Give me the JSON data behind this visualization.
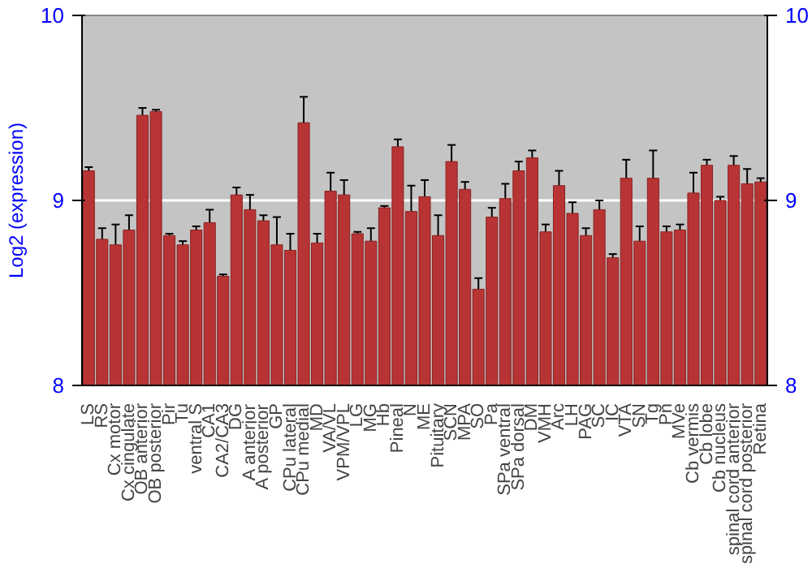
{
  "chart_data": {
    "type": "bar",
    "ylabel": "Log2 (expression)",
    "categories": [
      "LS",
      "RS",
      "Cx motor",
      "Cx cingulate",
      "OB anterior",
      "OB posterior",
      "Pir",
      "Tu",
      "ventral S",
      "CA1",
      "CA2/CA3",
      "DG",
      "A anterior",
      "A posterior",
      "GP",
      "CPu lateral",
      "CPu medial",
      "MD",
      "VA/VL",
      "VPM/VPL",
      "LG",
      "MG",
      "Hb",
      "Pineal",
      "N",
      "ME",
      "Pituitary",
      "SCN",
      "MPA",
      "SO",
      "Pa",
      "SPa ventral",
      "SPa dorsal",
      "DM",
      "VMH",
      "Arc",
      "LH",
      "PAG",
      "SC",
      "IC",
      "VTA",
      "SN",
      "Tg",
      "Pn",
      "MVe",
      "Cb vermis",
      "Cb lobe",
      "Cb nucleus",
      "spinal cord anterior",
      "spinal cord posterior",
      "Retina"
    ],
    "values": [
      9.16,
      8.79,
      8.76,
      8.84,
      9.46,
      9.48,
      8.81,
      8.76,
      8.84,
      8.88,
      8.59,
      9.03,
      8.95,
      8.89,
      8.76,
      8.73,
      9.42,
      8.77,
      9.05,
      9.03,
      8.82,
      8.78,
      8.96,
      9.29,
      8.94,
      9.02,
      8.81,
      9.21,
      9.06,
      8.52,
      8.91,
      9.01,
      9.16,
      9.23,
      8.83,
      9.08,
      8.93,
      8.81,
      8.95,
      8.69,
      9.12,
      8.78,
      9.12,
      8.83,
      8.84,
      9.04,
      9.19,
      9.0,
      9.19,
      9.09,
      9.1
    ],
    "errors": [
      0.02,
      0.06,
      0.11,
      0.08,
      0.04,
      0.01,
      0.01,
      0.02,
      0.02,
      0.07,
      0.01,
      0.04,
      0.08,
      0.03,
      0.15,
      0.09,
      0.14,
      0.05,
      0.1,
      0.08,
      0.01,
      0.07,
      0.01,
      0.04,
      0.14,
      0.09,
      0.11,
      0.09,
      0.04,
      0.06,
      0.05,
      0.08,
      0.05,
      0.04,
      0.04,
      0.08,
      0.06,
      0.04,
      0.05,
      0.02,
      0.1,
      0.08,
      0.15,
      0.03,
      0.03,
      0.11,
      0.03,
      0.02,
      0.05,
      0.08,
      0.02
    ],
    "color": "#b83434",
    "ylim": [
      8,
      10
    ],
    "yticks": [
      8,
      9,
      10
    ],
    "y2lim": [
      8,
      10
    ],
    "y2ticks": [
      8,
      9,
      10
    ],
    "grid": "y"
  }
}
